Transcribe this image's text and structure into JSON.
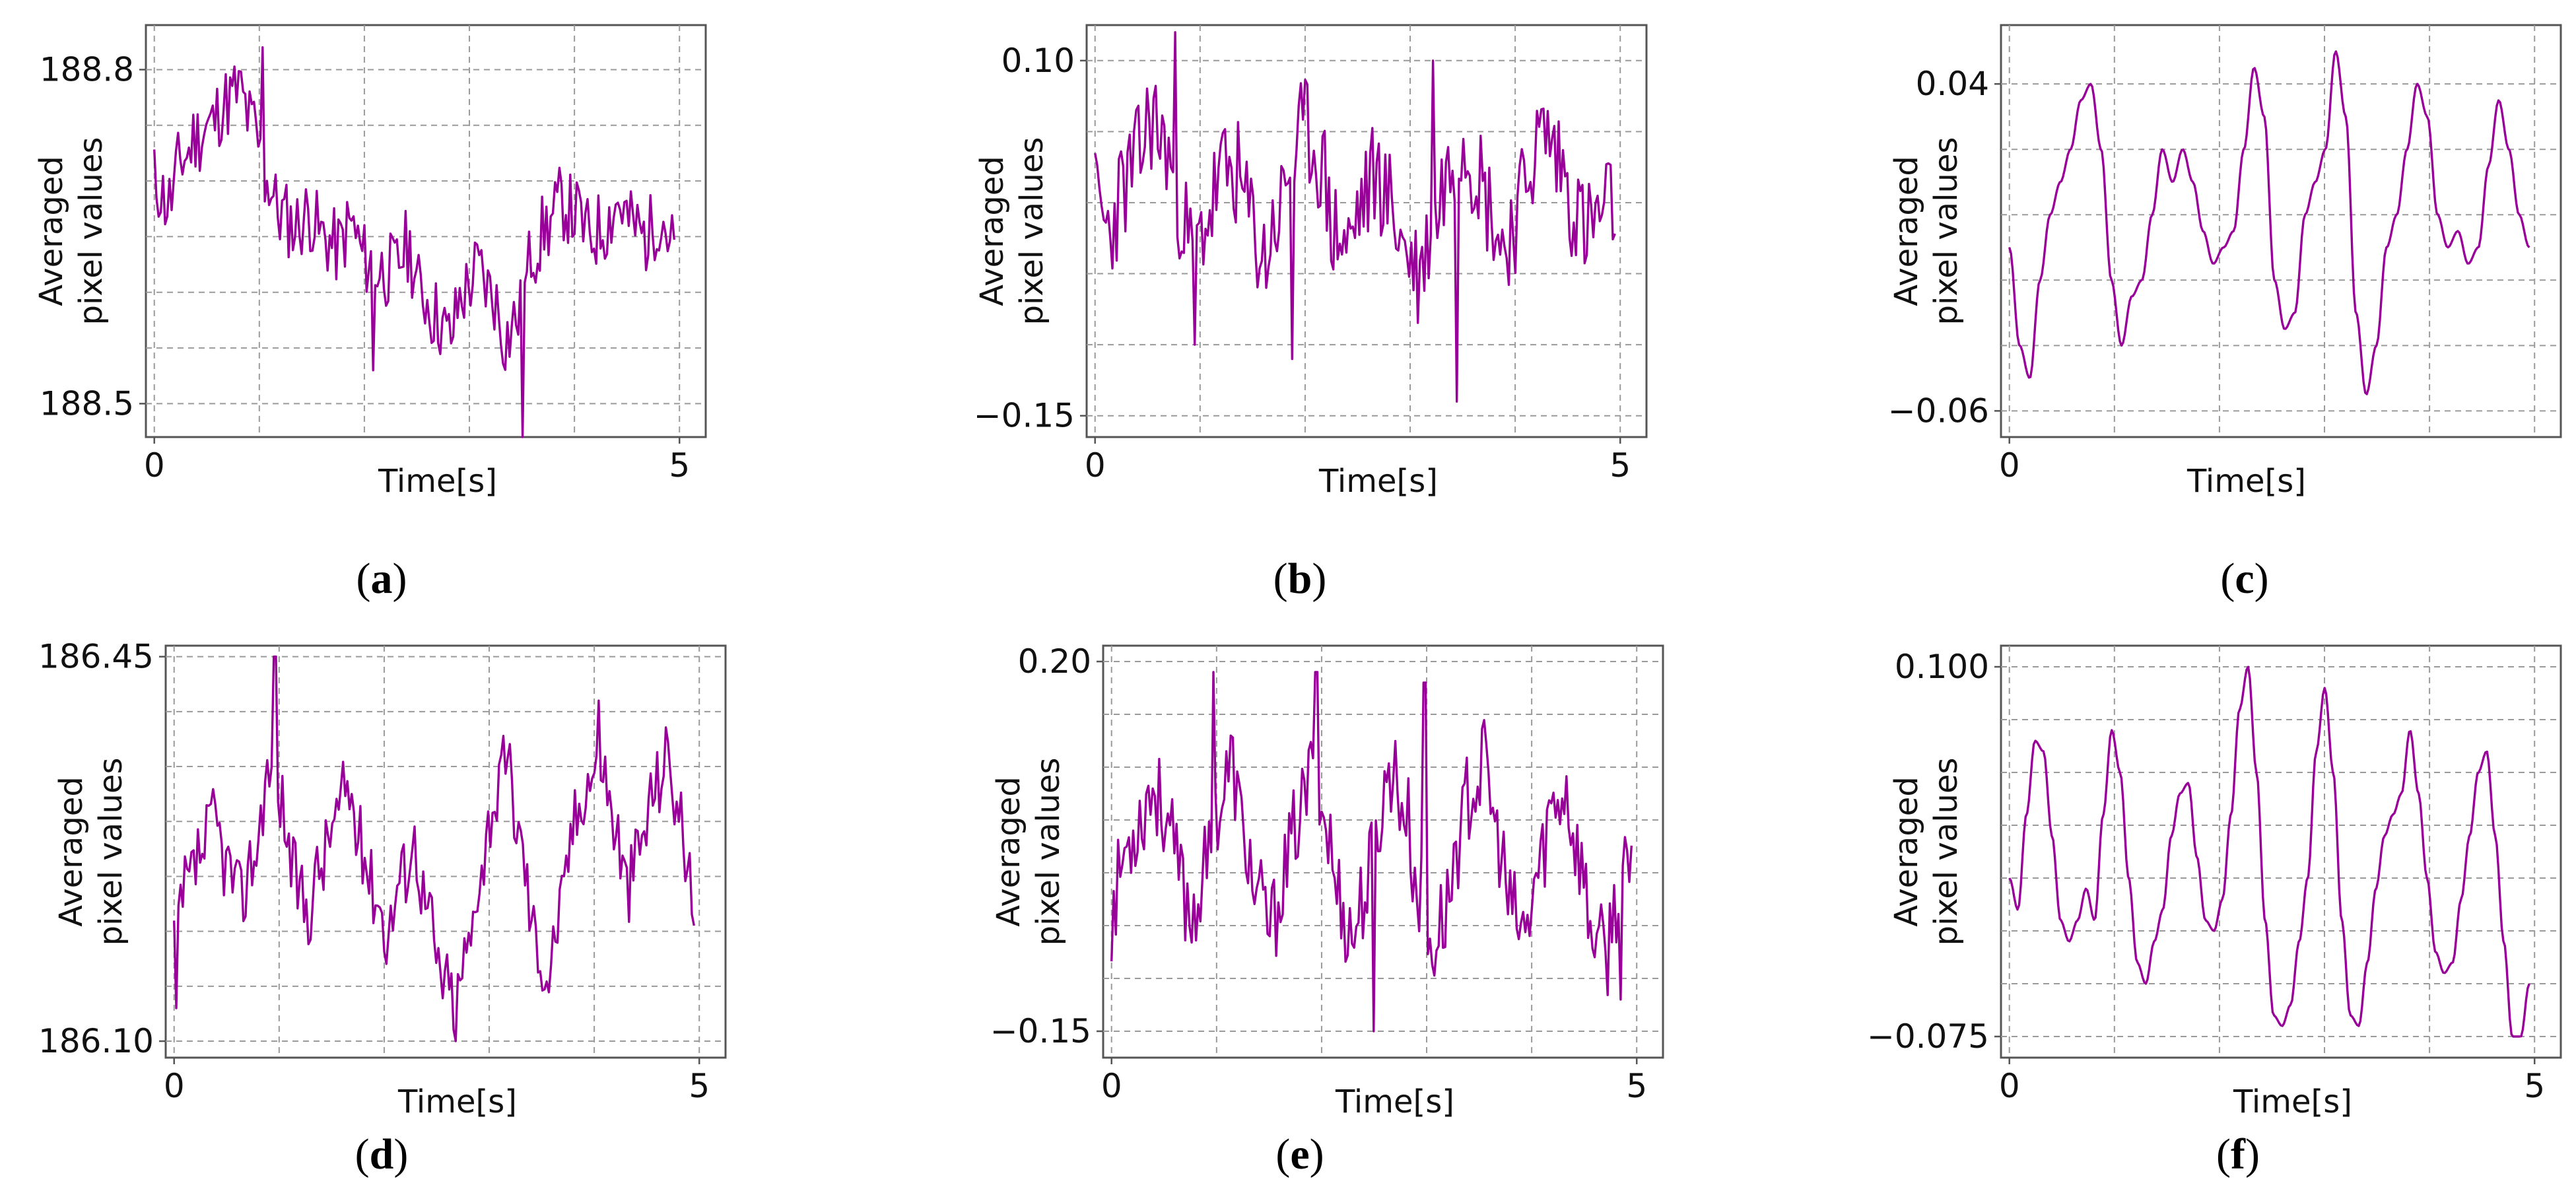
{
  "figure": {
    "line_color": "#990099",
    "grid_color": "#9a9a9a",
    "frame_color": "#555555"
  },
  "chart_data": [
    {
      "id": "a",
      "type": "line",
      "caption": "a",
      "noise_seed": 11,
      "xlabel": "Time[s]",
      "ylabel_line1": "Averaged",
      "ylabel_line2": "pixel values",
      "xlim": [
        -0.08,
        5.25
      ],
      "ylim": [
        188.47,
        188.84
      ],
      "x_ticks": [
        {
          "value": 0,
          "label": "0"
        },
        {
          "value": 5,
          "label": "5"
        }
      ],
      "y_ticks": [
        {
          "value": 188.8,
          "label": "188.8"
        },
        {
          "value": 188.5,
          "label": "188.5"
        }
      ],
      "y_grid": [
        188.5,
        188.55,
        188.6,
        188.65,
        188.7,
        188.75,
        188.8
      ],
      "x_grid": [
        0,
        1,
        2,
        3,
        4,
        5
      ],
      "series": [
        {
          "name": "averaged pixel values",
          "x_start": 0,
          "x_end": 4.95,
          "values": [
            188.7,
            188.68,
            188.72,
            188.74,
            188.75,
            188.77,
            188.78,
            188.75,
            188.7,
            188.67,
            188.66,
            188.67,
            188.65,
            188.64,
            188.66,
            188.63,
            188.62,
            188.62,
            188.64,
            188.6,
            188.58,
            188.56,
            188.6,
            188.62,
            188.6,
            188.56,
            188.58,
            188.64,
            188.66,
            188.68,
            188.67,
            188.65,
            188.66,
            188.68,
            188.66,
            188.65,
            188.67,
            188.64
          ],
          "noise": 0.035,
          "spikes": [
            [
              1.03,
              188.82
            ],
            [
              3.5,
              188.47
            ],
            [
              2.08,
              188.53
            ],
            [
              0.33,
              188.73
            ]
          ]
        }
      ]
    },
    {
      "id": "b",
      "type": "line",
      "caption": "b",
      "noise_seed": 23,
      "xlabel": "Time[s]",
      "ylabel_line1": "Averaged",
      "ylabel_line2": "pixel values",
      "xlim": [
        -0.08,
        5.25
      ],
      "ylim": [
        -0.165,
        0.125
      ],
      "x_ticks": [
        {
          "value": 0,
          "label": "0"
        },
        {
          "value": 5,
          "label": "5"
        }
      ],
      "y_ticks": [
        {
          "value": 0.1,
          "label": "0.10"
        },
        {
          "value": -0.15,
          "label": "−0.15"
        }
      ],
      "y_grid": [
        -0.15,
        -0.1,
        -0.05,
        0,
        0.05,
        0.1
      ],
      "x_grid": [
        0,
        1,
        2,
        3,
        4,
        5
      ],
      "series": [
        {
          "name": "averaged pixel values",
          "x_start": 0,
          "x_end": 4.95,
          "values": [
            0,
            -0.02,
            0.01,
            0.03,
            0.06,
            0.04,
            0.0,
            -0.04,
            -0.01,
            0.02,
            0.02,
            -0.01,
            -0.04,
            -0.01,
            0.03,
            0.05,
            0.03,
            -0.02,
            -0.03,
            0.0,
            0.02,
            0.0,
            -0.03,
            -0.05,
            -0.02,
            0.02,
            0.05,
            0.03,
            0.0,
            -0.03,
            -0.01,
            0.03,
            0.05,
            0.03,
            0.0,
            -0.02,
            -0.01,
            0.0
          ],
          "noise": 0.04,
          "spikes": [
            [
              0.77,
              0.12
            ],
            [
              3.45,
              -0.14
            ],
            [
              3.22,
              0.1
            ],
            [
              1.88,
              -0.11
            ],
            [
              0.95,
              -0.1
            ]
          ]
        }
      ]
    },
    {
      "id": "c",
      "type": "line",
      "caption": "c",
      "noise_seed": 0,
      "xlabel": "Time[s]",
      "ylabel_line1": "Averaged",
      "ylabel_line2": "pixel values",
      "xlim": [
        -0.08,
        5.25
      ],
      "ylim": [
        -0.068,
        0.058
      ],
      "x_ticks": [
        {
          "value": 0,
          "label": "0"
        }
      ],
      "y_ticks": [
        {
          "value": 0.04,
          "label": "0.04"
        },
        {
          "value": -0.06,
          "label": "−0.06"
        }
      ],
      "y_grid": [
        -0.06,
        -0.04,
        -0.02,
        0,
        0.02,
        0.04
      ],
      "x_grid": [
        0,
        1,
        2,
        3,
        4,
        5
      ],
      "series": [
        {
          "name": "averaged pixel values",
          "x_start": 0,
          "x_end": 4.95,
          "values": [
            -0.01,
            -0.04,
            -0.05,
            -0.02,
            0.0,
            0.01,
            0.02,
            0.035,
            0.04,
            0.02,
            -0.02,
            -0.04,
            -0.025,
            -0.02,
            0.0,
            0.02,
            0.01,
            0.02,
            0.01,
            -0.005,
            -0.015,
            -0.01,
            -0.005,
            0.02,
            0.045,
            0.03,
            -0.02,
            -0.035,
            -0.03,
            0.0,
            0.01,
            0.02,
            0.05,
            0.03,
            -0.03,
            -0.055,
            -0.04,
            -0.01,
            0.0,
            0.02,
            0.04,
            0.03,
            0.0,
            -0.01,
            -0.005,
            -0.015,
            -0.01,
            0.015,
            0.035,
            0.02,
            0.0,
            -0.01
          ],
          "noise": 0,
          "spikes": []
        }
      ]
    },
    {
      "id": "d",
      "type": "line",
      "caption": "d",
      "noise_seed": 37,
      "xlabel": "Time[s]",
      "ylabel_line1": "Averaged",
      "ylabel_line2": "pixel values",
      "xlim": [
        -0.08,
        5.25
      ],
      "ylim": [
        186.085,
        186.46
      ],
      "x_ticks": [
        {
          "value": 0,
          "label": "0"
        },
        {
          "value": 5,
          "label": "5"
        }
      ],
      "y_ticks": [
        {
          "value": 186.45,
          "label": "186.45"
        },
        {
          "value": 186.1,
          "label": "186.10"
        }
      ],
      "y_grid": [
        186.1,
        186.15,
        186.2,
        186.25,
        186.3,
        186.35,
        186.4,
        186.45
      ],
      "x_grid": [
        0,
        1,
        2,
        3,
        4,
        5
      ],
      "series": [
        {
          "name": "averaged pixel values",
          "x_start": 0,
          "x_end": 4.95,
          "values": [
            186.2,
            186.24,
            186.27,
            186.3,
            186.26,
            186.23,
            186.27,
            186.34,
            186.32,
            186.25,
            186.22,
            186.26,
            186.3,
            186.33,
            186.28,
            186.24,
            186.2,
            186.25,
            186.28,
            186.22,
            186.16,
            186.14,
            186.18,
            186.26,
            186.32,
            186.35,
            186.28,
            186.2,
            186.16,
            186.22,
            186.3,
            186.34,
            186.36,
            186.3,
            186.24,
            186.28,
            186.33,
            186.36,
            186.3,
            186.22
          ],
          "noise": 0.035,
          "spikes": [
            [
              0.96,
              186.45
            ],
            [
              2.68,
              186.1
            ],
            [
              0.02,
              186.13
            ],
            [
              4.05,
              186.41
            ]
          ]
        }
      ]
    },
    {
      "id": "e",
      "type": "line",
      "caption": "e",
      "noise_seed": 53,
      "xlabel": "Time[s]",
      "ylabel_line1": "Averaged",
      "ylabel_line2": "pixel values",
      "xlim": [
        -0.08,
        5.25
      ],
      "ylim": [
        -0.175,
        0.215
      ],
      "x_ticks": [
        {
          "value": 0,
          "label": "0"
        },
        {
          "value": 5,
          "label": "5"
        }
      ],
      "y_ticks": [
        {
          "value": 0.2,
          "label": "0.20"
        },
        {
          "value": -0.15,
          "label": "−0.15"
        }
      ],
      "y_grid": [
        -0.15,
        -0.1,
        -0.05,
        0,
        0.05,
        0.1,
        0.15,
        0.2
      ],
      "x_grid": [
        0,
        1,
        2,
        3,
        4,
        5
      ],
      "series": [
        {
          "name": "averaged pixel values",
          "x_start": 0,
          "x_end": 4.95,
          "values": [
            -0.04,
            0.02,
            0.05,
            0.08,
            0.06,
            0.0,
            -0.04,
            0.0,
            0.06,
            0.1,
            0.03,
            -0.03,
            -0.05,
            0.0,
            0.05,
            0.09,
            0.05,
            -0.02,
            -0.06,
            -0.02,
            0.05,
            0.1,
            0.06,
            -0.02,
            -0.07,
            -0.04,
            0.03,
            0.08,
            0.1,
            0.03,
            -0.04,
            -0.06,
            0.0,
            0.06,
            0.08,
            0.02,
            -0.05,
            -0.08,
            -0.02,
            0.0
          ],
          "noise": 0.045,
          "spikes": [
            [
              0.97,
              0.19
            ],
            [
              1.95,
              0.19
            ],
            [
              2.98,
              0.18
            ],
            [
              2.5,
              -0.15
            ],
            [
              4.85,
              -0.12
            ]
          ]
        }
      ]
    },
    {
      "id": "f",
      "type": "line",
      "caption": "f",
      "noise_seed": 0,
      "xlabel": "Time[s]",
      "ylabel_line1": "Averaged",
      "ylabel_line2": "pixel values",
      "xlim": [
        -0.08,
        5.25
      ],
      "ylim": [
        -0.085,
        0.11
      ],
      "x_ticks": [
        {
          "value": 0,
          "label": "0"
        },
        {
          "value": 5,
          "label": "5"
        }
      ],
      "y_ticks": [
        {
          "value": 0.1,
          "label": "0.100"
        },
        {
          "value": -0.075,
          "label": "−0.075"
        }
      ],
      "y_grid": [
        -0.075,
        -0.05,
        -0.025,
        0,
        0.025,
        0.05,
        0.075,
        0.1
      ],
      "x_grid": [
        0,
        1,
        2,
        3,
        4,
        5
      ],
      "series": [
        {
          "name": "averaged pixel values",
          "x_start": 0,
          "x_end": 4.95,
          "values": [
            0.0,
            -0.015,
            0.03,
            0.065,
            0.06,
            0.02,
            -0.02,
            -0.03,
            -0.02,
            -0.005,
            -0.02,
            0.03,
            0.07,
            0.05,
            0.0,
            -0.04,
            -0.05,
            -0.03,
            -0.015,
            0.02,
            0.04,
            0.045,
            0.01,
            -0.02,
            -0.025,
            -0.01,
            0.03,
            0.08,
            0.1,
            0.05,
            -0.02,
            -0.065,
            -0.07,
            -0.06,
            -0.03,
            0.0,
            0.06,
            0.09,
            0.05,
            -0.02,
            -0.065,
            -0.07,
            -0.04,
            -0.005,
            0.02,
            0.03,
            0.04,
            0.07,
            0.04,
            0.0,
            -0.035,
            -0.045,
            -0.04,
            -0.01,
            0.02,
            0.05,
            0.06,
            0.02,
            -0.03,
            -0.075,
            -0.075,
            -0.05
          ],
          "noise": 0,
          "spikes": []
        }
      ]
    }
  ]
}
